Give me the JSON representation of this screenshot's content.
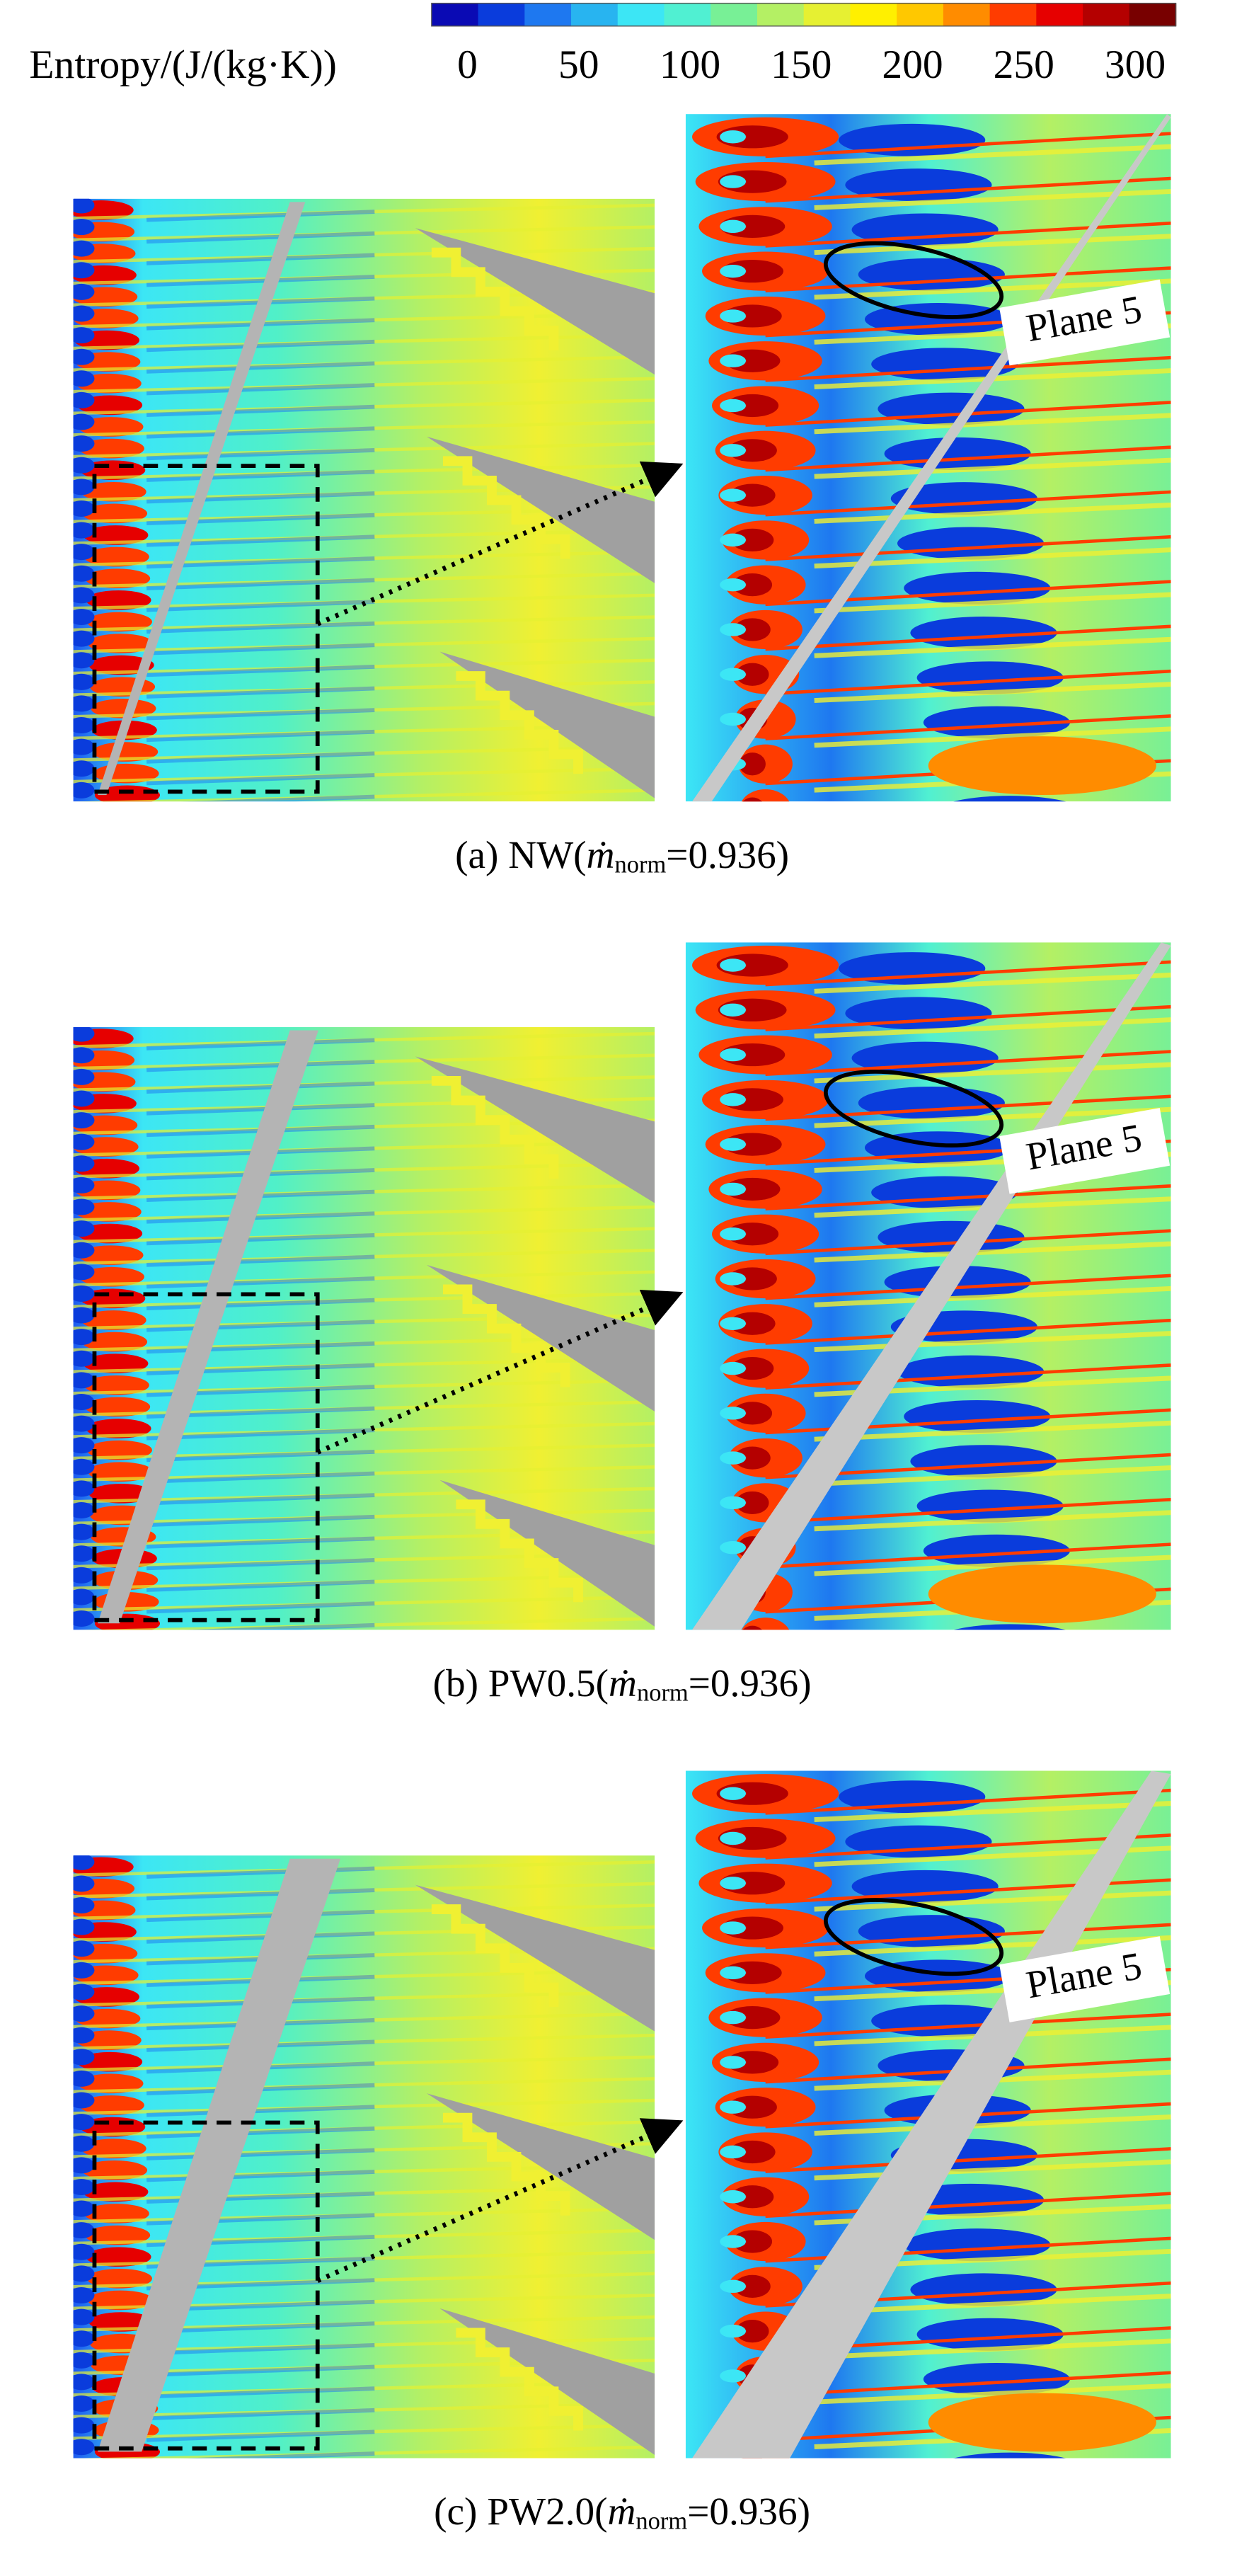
{
  "colorbar": {
    "label": "Entropy/(J/(kg·K))",
    "ticks": [
      0,
      50,
      100,
      150,
      200,
      250,
      300
    ]
  },
  "panels": [
    {
      "prefix": "(a) NW(",
      "symbol": "ṁ",
      "subscript": "norm",
      "suffix": "=0.936)",
      "annotation": "Plane 5"
    },
    {
      "prefix": "(b) PW0.5(",
      "symbol": "ṁ",
      "subscript": "norm",
      "suffix": "=0.936)",
      "annotation": "Plane 5"
    },
    {
      "prefix": "(c) PW2.0(",
      "symbol": "ṁ",
      "subscript": "norm",
      "suffix": "=0.936)",
      "annotation": "Plane 5"
    }
  ]
}
